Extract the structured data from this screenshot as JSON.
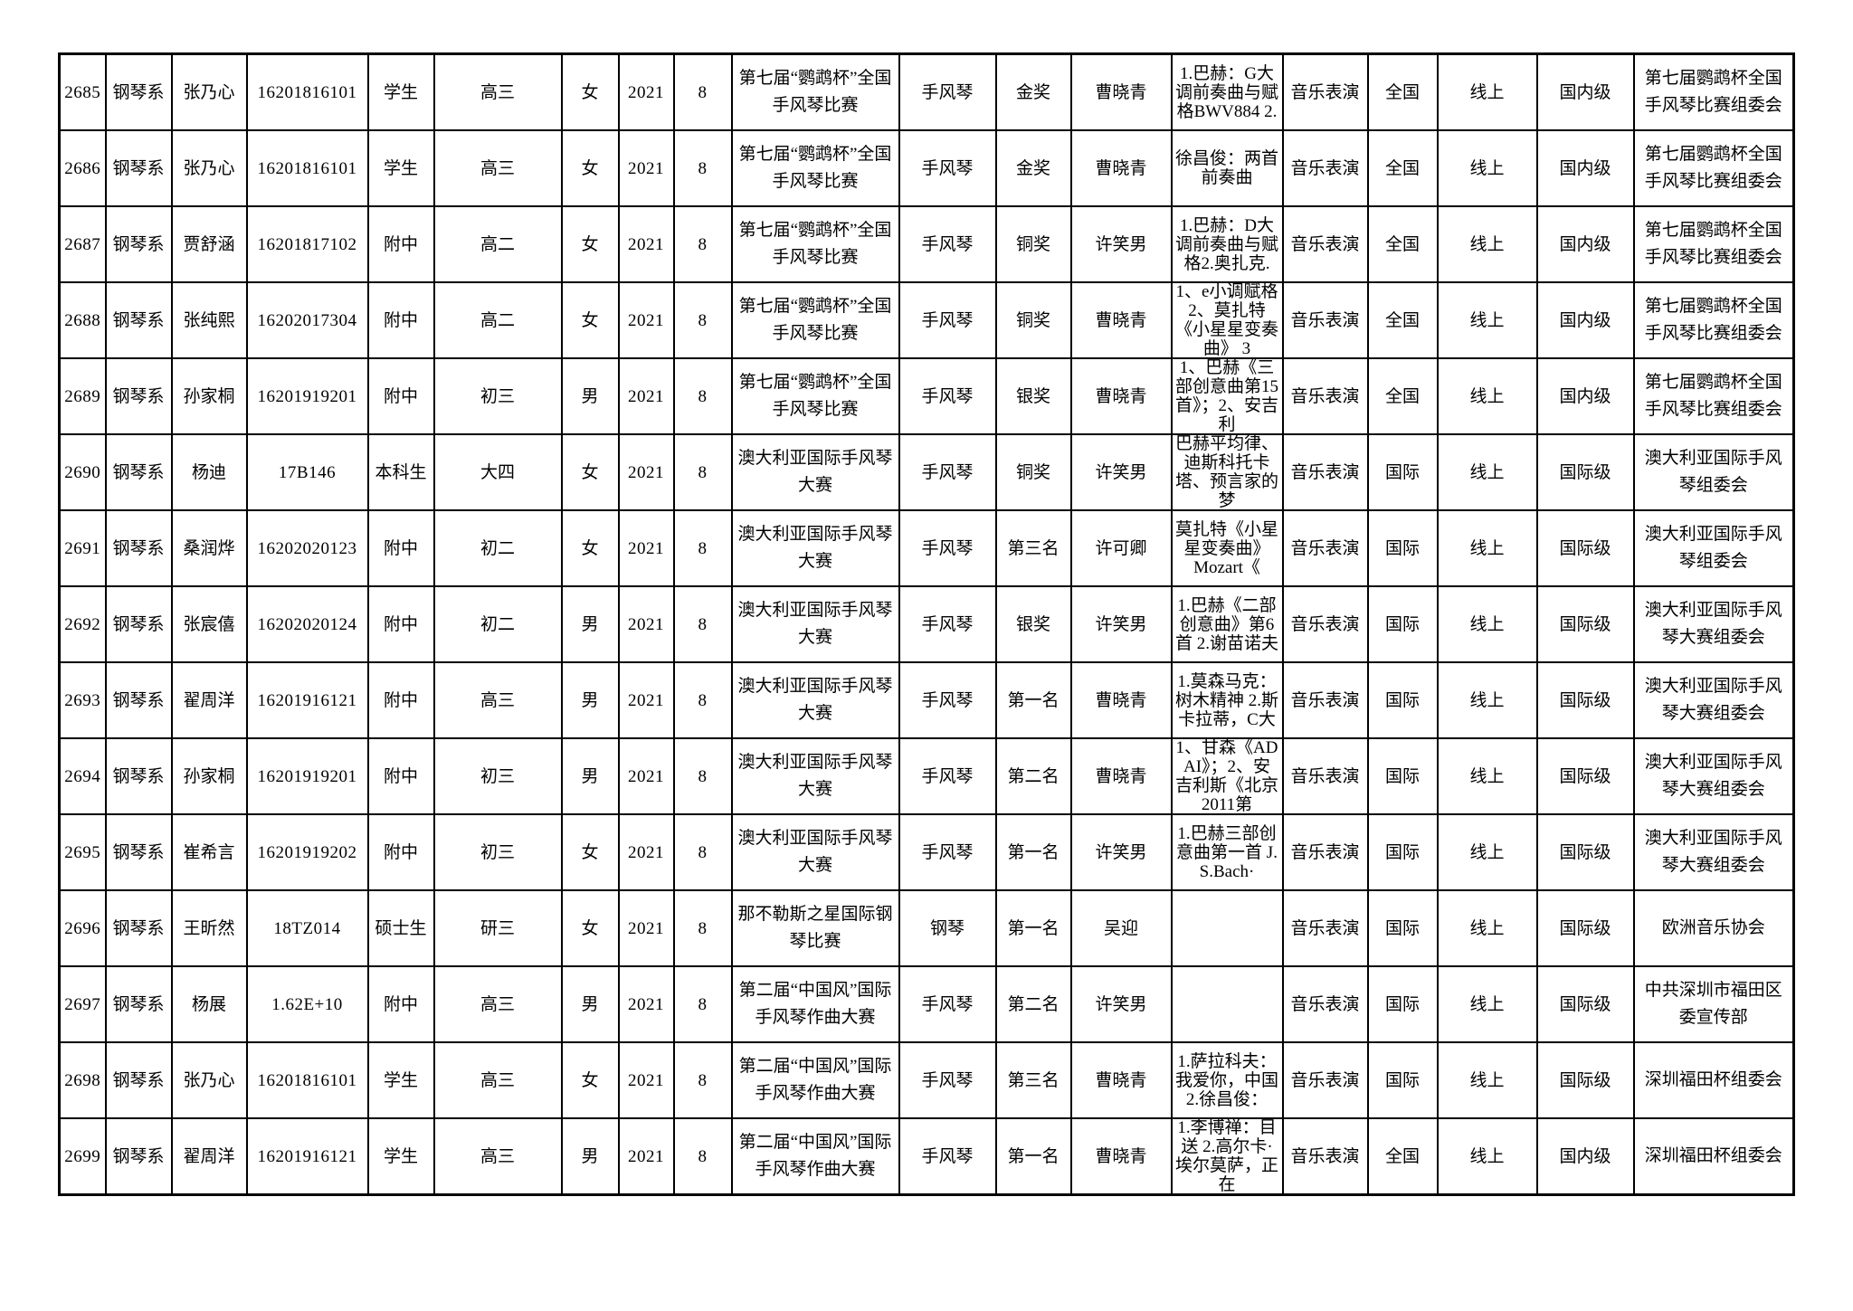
{
  "page": {
    "background_color": "#ffffff",
    "grid_color": "#000000",
    "text_color": "#000000"
  },
  "table": {
    "columns": [
      "seq",
      "department",
      "name",
      "student-id",
      "status",
      "grade",
      "gender",
      "year",
      "month",
      "competition",
      "instrument",
      "award",
      "teacher",
      "repertoire",
      "major",
      "scope",
      "mode",
      "level",
      "organizer"
    ],
    "rows": [
      {
        "cells": [
          "2685",
          "钢琴系",
          "张乃心",
          "16201816101",
          "学生",
          "高三",
          "女",
          "2021",
          "8",
          "第七届“鹦鹉杯”全国手风琴比赛",
          "手风琴",
          "金奖",
          "曹晓青",
          "1.巴赫：G大调前奏曲与赋格BWV884 2.",
          "音乐表演",
          "全国",
          "线上",
          "国内级",
          "第七届鹦鹉杯全国手风琴比赛组委会"
        ]
      },
      {
        "cells": [
          "2686",
          "钢琴系",
          "张乃心",
          "16201816101",
          "学生",
          "高三",
          "女",
          "2021",
          "8",
          "第七届“鹦鹉杯”全国手风琴比赛",
          "手风琴",
          "金奖",
          "曹晓青",
          "徐昌俊：两首前奏曲",
          "音乐表演",
          "全国",
          "线上",
          "国内级",
          "第七届鹦鹉杯全国手风琴比赛组委会"
        ]
      },
      {
        "cells": [
          "2687",
          "钢琴系",
          "贾舒涵",
          "16201817102",
          "附中",
          "高二",
          "女",
          "2021",
          "8",
          "第七届“鹦鹉杯”全国手风琴比赛",
          "手风琴",
          "铜奖",
          "许笑男",
          "1.巴赫：D大调前奏曲与赋格2.奥扎克.",
          "音乐表演",
          "全国",
          "线上",
          "国内级",
          "第七届鹦鹉杯全国手风琴比赛组委会"
        ]
      },
      {
        "cells": [
          "2688",
          "钢琴系",
          "张纯熙",
          "16202017304",
          "附中",
          "高二",
          "女",
          "2021",
          "8",
          "第七届“鹦鹉杯”全国手风琴比赛",
          "手风琴",
          "铜奖",
          "曹晓青",
          "1、e小调赋格 2、莫扎特《小星星变奏曲》 3",
          "音乐表演",
          "全国",
          "线上",
          "国内级",
          "第七届鹦鹉杯全国手风琴比赛组委会"
        ]
      },
      {
        "cells": [
          "2689",
          "钢琴系",
          "孙家桐",
          "16201919201",
          "附中",
          "初三",
          "男",
          "2021",
          "8",
          "第七届“鹦鹉杯”全国手风琴比赛",
          "手风琴",
          "银奖",
          "曹晓青",
          "1、巴赫《三部创意曲第15首》；2、安吉利",
          "音乐表演",
          "全国",
          "线上",
          "国内级",
          "第七届鹦鹉杯全国手风琴比赛组委会"
        ]
      },
      {
        "cells": [
          "2690",
          "钢琴系",
          "杨迪",
          "17B146",
          "本科生",
          "大四",
          "女",
          "2021",
          "8",
          "澳大利亚国际手风琴大赛",
          "手风琴",
          "铜奖",
          "许笑男",
          "巴赫平均律、迪斯科托卡塔、预言家的梦",
          "音乐表演",
          "国际",
          "线上",
          "国际级",
          "澳大利亚国际手风琴组委会"
        ]
      },
      {
        "cells": [
          "2691",
          "钢琴系",
          "桑润烨",
          "16202020123",
          "附中",
          "初二",
          "女",
          "2021",
          "8",
          "澳大利亚国际手风琴大赛",
          "手风琴",
          "第三名",
          "许可卿",
          "莫扎特《小星星变奏曲》 Mozart《",
          "音乐表演",
          "国际",
          "线上",
          "国际级",
          "澳大利亚国际手风琴组委会"
        ]
      },
      {
        "cells": [
          "2692",
          "钢琴系",
          "张宸僖",
          "16202020124",
          "附中",
          "初二",
          "男",
          "2021",
          "8",
          "澳大利亚国际手风琴大赛",
          "手风琴",
          "银奖",
          "许笑男",
          "1.巴赫《二部创意曲》第6首 2.谢苗诺夫",
          "音乐表演",
          "国际",
          "线上",
          "国际级",
          "澳大利亚国际手风琴大赛组委会"
        ]
      },
      {
        "cells": [
          "2693",
          "钢琴系",
          "翟周洋",
          "16201916121",
          "附中",
          "高三",
          "男",
          "2021",
          "8",
          "澳大利亚国际手风琴大赛",
          "手风琴",
          "第一名",
          "曹晓青",
          "1.莫森马克：树木精神 2.斯卡拉蒂，C大",
          "音乐表演",
          "国际",
          "线上",
          "国际级",
          "澳大利亚国际手风琴大赛组委会"
        ]
      },
      {
        "cells": [
          "2694",
          "钢琴系",
          "孙家桐",
          "16201919201",
          "附中",
          "初三",
          "男",
          "2021",
          "8",
          "澳大利亚国际手风琴大赛",
          "手风琴",
          "第二名",
          "曹晓青",
          "1、甘森《ADAI》；2、安吉利斯《北京2011第",
          "音乐表演",
          "国际",
          "线上",
          "国际级",
          "澳大利亚国际手风琴大赛组委会"
        ]
      },
      {
        "cells": [
          "2695",
          "钢琴系",
          "崔希言",
          "16201919202",
          "附中",
          "初三",
          "女",
          "2021",
          "8",
          "澳大利亚国际手风琴大赛",
          "手风琴",
          "第一名",
          "许笑男",
          "1.巴赫三部创意曲第一首 J.S.Bach·",
          "音乐表演",
          "国际",
          "线上",
          "国际级",
          "澳大利亚国际手风琴大赛组委会"
        ]
      },
      {
        "cells": [
          "2696",
          "钢琴系",
          "王昕然",
          "18TZ014",
          "硕士生",
          "研三",
          "女",
          "2021",
          "8",
          "那不勒斯之星国际钢琴比赛",
          "钢琴",
          "第一名",
          "吴迎",
          "",
          "音乐表演",
          "国际",
          "线上",
          "国际级",
          "欧洲音乐协会"
        ]
      },
      {
        "cells": [
          "2697",
          "钢琴系",
          "杨展",
          "1.62E+10",
          "附中",
          "高三",
          "男",
          "2021",
          "8",
          "第二届“中国风”国际手风琴作曲大赛",
          "手风琴",
          "第二名",
          "许笑男",
          "",
          "音乐表演",
          "国际",
          "线上",
          "国际级",
          "中共深圳市福田区委宣传部"
        ]
      },
      {
        "cells": [
          "2698",
          "钢琴系",
          "张乃心",
          "16201816101",
          "学生",
          "高三",
          "女",
          "2021",
          "8",
          "第二届“中国风”国际手风琴作曲大赛",
          "手风琴",
          "第三名",
          "曹晓青",
          "1.萨拉科夫：我爱你，中国 2.徐昌俊：",
          "音乐表演",
          "国际",
          "线上",
          "国际级",
          "深圳福田杯组委会"
        ]
      },
      {
        "cells": [
          "2699",
          "钢琴系",
          "翟周洋",
          "16201916121",
          "学生",
          "高三",
          "男",
          "2021",
          "8",
          "第二届“中国风”国际手风琴作曲大赛",
          "手风琴",
          "第一名",
          "曹晓青",
          "1.李博禅：目送 2.高尔卡·埃尔莫萨，正在",
          "音乐表演",
          "全国",
          "线上",
          "国内级",
          "深圳福田杯组委会"
        ]
      }
    ]
  }
}
